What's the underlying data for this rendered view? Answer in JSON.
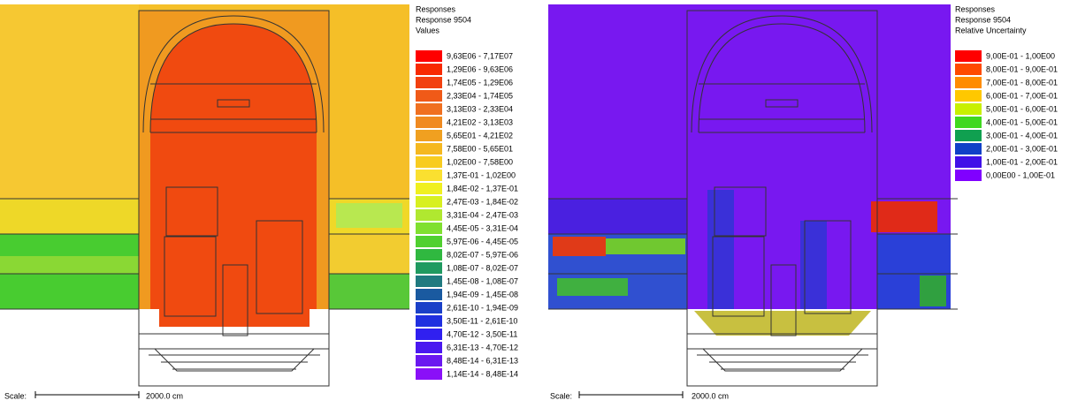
{
  "panels": [
    {
      "legend": {
        "title": [
          "Responses",
          "Response 9504",
          "Values"
        ],
        "entries": [
          {
            "label": "9,63E06 - 7,17E07",
            "color": "#ff0000"
          },
          {
            "label": "1,29E06 - 9,63E06",
            "color": "#f82a00"
          },
          {
            "label": "1,74E05 - 1,29E06",
            "color": "#f24010"
          },
          {
            "label": "2,33E04 - 1,74E05",
            "color": "#f05a18"
          },
          {
            "label": "3,13E03 - 2,33E04",
            "color": "#f07020"
          },
          {
            "label": "4,21E02 - 3,13E03",
            "color": "#f08a20"
          },
          {
            "label": "5,65E01 - 4,21E02",
            "color": "#f0a020"
          },
          {
            "label": "7,58E00 - 5,65E01",
            "color": "#f5b820"
          },
          {
            "label": "1,02E00 - 7,58E00",
            "color": "#f8cc20"
          },
          {
            "label": "1,37E-01 - 1,02E00",
            "color": "#fae030"
          },
          {
            "label": "1,84E-02 - 1,37E-01",
            "color": "#f0f020"
          },
          {
            "label": "2,47E-03 - 1,84E-02",
            "color": "#d8f020"
          },
          {
            "label": "3,31E-04 - 2,47E-03",
            "color": "#b0e830"
          },
          {
            "label": "4,45E-05 - 3,31E-04",
            "color": "#80e030"
          },
          {
            "label": "5,97E-06 - 4,45E-05",
            "color": "#50d030"
          },
          {
            "label": "8,02E-07 - 5,97E-06",
            "color": "#30b840"
          },
          {
            "label": "1,08E-07 - 8,02E-07",
            "color": "#209a60"
          },
          {
            "label": "1,45E-08 - 1,08E-07",
            "color": "#207a80"
          },
          {
            "label": "1,94E-09 - 1,45E-08",
            "color": "#1a5aa0"
          },
          {
            "label": "2,61E-10 - 1,94E-09",
            "color": "#1a40c8"
          },
          {
            "label": "3,50E-11 - 2,61E-10",
            "color": "#2030e0"
          },
          {
            "label": "4,70E-12 - 3,50E-11",
            "color": "#3020f0"
          },
          {
            "label": "6,31E-13 - 4,70E-12",
            "color": "#4a18f0"
          },
          {
            "label": "8,48E-14 - 6,31E-13",
            "color": "#6a18f0"
          },
          {
            "label": "1,14E-14 - 8,48E-14",
            "color": "#8a10f8"
          }
        ]
      },
      "scale": {
        "label": "Scale:",
        "length": "2000.0 cm"
      }
    },
    {
      "legend": {
        "title": [
          "Responses",
          "Response 9504",
          "Relative Uncertainty"
        ],
        "entries": [
          {
            "label": "9,00E-01 - 1,00E00",
            "color": "#ff0000"
          },
          {
            "label": "8,00E-01 - 9,00E-01",
            "color": "#ff4a00"
          },
          {
            "label": "7,00E-01 - 8,00E-01",
            "color": "#ff8c00"
          },
          {
            "label": "6,00E-01 - 7,00E-01",
            "color": "#ffc800"
          },
          {
            "label": "5,00E-01 - 6,00E-01",
            "color": "#c8f000"
          },
          {
            "label": "4,00E-01 - 5,00E-01",
            "color": "#40d820"
          },
          {
            "label": "3,00E-01 - 4,00E-01",
            "color": "#10a050"
          },
          {
            "label": "2,00E-01 - 3,00E-01",
            "color": "#1040c8"
          },
          {
            "label": "1,00E-01 - 2,00E-01",
            "color": "#4010e8"
          },
          {
            "label": "0,00E00 - 1,00E-01",
            "color": "#8000ff"
          }
        ]
      },
      "scale": {
        "label": "Scale:",
        "length": "2000.0 cm"
      }
    }
  ]
}
